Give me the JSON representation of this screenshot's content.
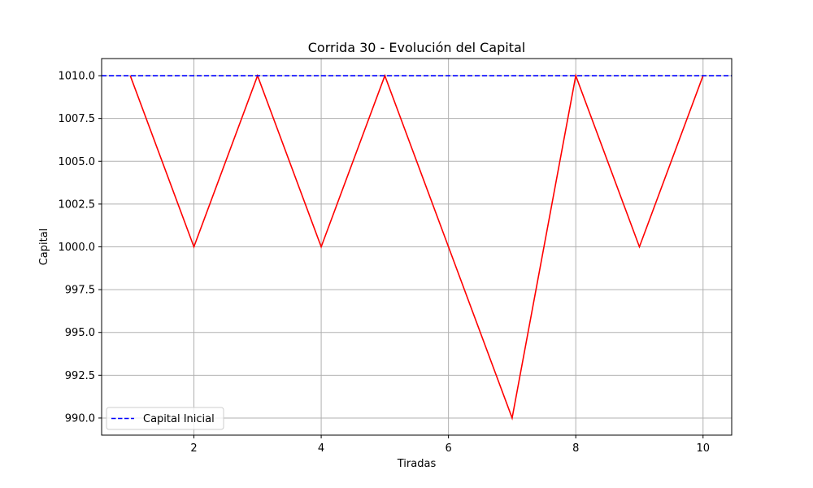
{
  "chart_data": {
    "type": "line",
    "title": "Corrida 30 - Evolución del Capital",
    "xlabel": "Tiradas",
    "ylabel": "Capital",
    "xlim": [
      0.55,
      10.45
    ],
    "ylim": [
      989.0,
      1011.0
    ],
    "xticks": [
      2,
      4,
      6,
      8,
      10
    ],
    "xtick_labels": [
      "2",
      "4",
      "6",
      "8",
      "10"
    ],
    "yticks": [
      990.0,
      992.5,
      995.0,
      997.5,
      1000.0,
      1002.5,
      1005.0,
      1007.5,
      1010.0
    ],
    "ytick_labels": [
      "990.0",
      "992.5",
      "995.0",
      "997.5",
      "1000.0",
      "1002.5",
      "1005.0",
      "1007.5",
      "1010.0"
    ],
    "grid": true,
    "legend_position": "lower-left",
    "series": [
      {
        "color": "#ff0000",
        "style": "solid",
        "x": [
          1,
          2,
          3,
          4,
          5,
          6,
          7,
          8,
          9,
          10
        ],
        "y": [
          1010,
          1000,
          1010,
          1000,
          1010,
          1000,
          990,
          1010,
          1000,
          1010
        ]
      }
    ],
    "reference_lines": [
      {
        "name": "Capital Inicial",
        "y": 1010,
        "color": "#0000ff",
        "style": "dashed"
      }
    ]
  }
}
